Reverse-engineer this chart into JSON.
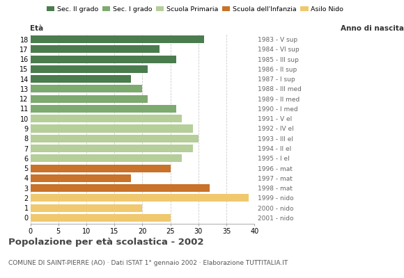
{
  "ages": [
    18,
    17,
    16,
    15,
    14,
    13,
    12,
    11,
    10,
    9,
    8,
    7,
    6,
    5,
    4,
    3,
    2,
    1,
    0
  ],
  "values": [
    31,
    23,
    26,
    21,
    18,
    20,
    21,
    26,
    27,
    29,
    30,
    29,
    27,
    25,
    18,
    32,
    39,
    20,
    25
  ],
  "right_labels": [
    "1983 - V sup",
    "1984 - VI sup",
    "1985 - III sup",
    "1986 - II sup",
    "1987 - I sup",
    "1988 - III med",
    "1989 - II med",
    "1990 - I med",
    "1991 - V el",
    "1992 - IV el",
    "1993 - III el",
    "1994 - II el",
    "1995 - I el",
    "1996 - mat",
    "1997 - mat",
    "1998 - mat",
    "1999 - nido",
    "2000 - nido",
    "2001 - nido"
  ],
  "colors": [
    "#4a7c4e",
    "#4a7c4e",
    "#4a7c4e",
    "#4a7c4e",
    "#4a7c4e",
    "#7daa6e",
    "#7daa6e",
    "#7daa6e",
    "#b5ce9a",
    "#b5ce9a",
    "#b5ce9a",
    "#b5ce9a",
    "#b5ce9a",
    "#c8722a",
    "#c8722a",
    "#c8722a",
    "#f0c96e",
    "#f0c96e",
    "#f0c96e"
  ],
  "legend_labels": [
    "Sec. II grado",
    "Sec. I grado",
    "Scuola Primaria",
    "Scuola dell'Infanzia",
    "Asilo Nido"
  ],
  "legend_colors": [
    "#4a7c4e",
    "#7daa6e",
    "#b5ce9a",
    "#c8722a",
    "#f0c96e"
  ],
  "title": "Popolazione per età scolastica - 2002",
  "subtitle": "COMUNE DI SAINT-PIERRE (AO) · Dati ISTAT 1° gennaio 2002 · Elaborazione TUTTITALIA.IT",
  "label_eta": "Età",
  "label_anno": "Anno di nascita",
  "xlim": [
    0,
    40
  ],
  "xticks": [
    0,
    5,
    10,
    15,
    20,
    25,
    30,
    35,
    40
  ],
  "background_color": "#ffffff",
  "bar_height": 0.78,
  "grid_color": "#cccccc",
  "grid_style": "--"
}
